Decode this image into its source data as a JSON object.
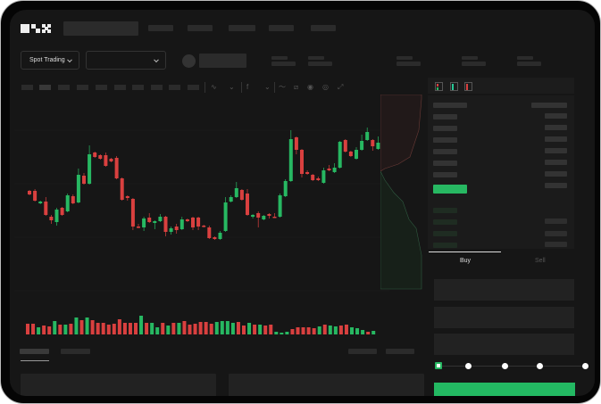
{
  "brand": {
    "logo_text": "OKX"
  },
  "toolbar": {
    "market_type": "Spot Trading"
  },
  "trade_panel": {
    "tabs": [
      {
        "label": "Buy",
        "active": true
      },
      {
        "label": "Sell",
        "active": false
      }
    ],
    "leverage_steps": 5,
    "selected_step": 0
  },
  "colors": {
    "up": "#27b862",
    "down": "#d9403f",
    "background": "#161616"
  },
  "icons": [
    "chevron-down-icon",
    "indicator-icon",
    "drawing-line-icon",
    "ruler-icon",
    "camera-icon",
    "settings-icon",
    "fullscreen-icon",
    "orderbook-both-icon",
    "orderbook-bids-icon",
    "orderbook-asks-icon"
  ],
  "chart_data": {
    "type": "candlestick",
    "candles": [
      [
        97,
        98,
        92,
        93
      ],
      [
        97,
        99,
        85,
        86
      ],
      [
        83,
        86,
        82,
        85
      ],
      [
        85,
        90,
        69,
        70
      ],
      [
        68,
        70,
        60,
        64
      ],
      [
        62,
        78,
        58,
        76
      ],
      [
        78,
        79,
        69,
        70
      ],
      [
        74,
        94,
        73,
        92
      ],
      [
        91,
        93,
        82,
        83
      ],
      [
        84,
        122,
        83,
        115
      ],
      [
        114,
        117,
        104,
        105
      ],
      [
        105,
        148,
        104,
        138
      ],
      [
        140,
        141,
        134,
        135
      ],
      [
        137,
        138,
        132,
        133
      ],
      [
        137,
        140,
        124,
        125
      ],
      [
        133,
        134,
        129,
        130
      ],
      [
        134,
        136,
        110,
        111
      ],
      [
        111,
        112,
        86,
        87
      ],
      [
        91,
        92,
        86,
        89
      ],
      [
        88,
        89,
        53,
        57
      ],
      [
        57,
        60,
        55,
        56
      ],
      [
        56,
        68,
        52,
        66
      ],
      [
        67,
        72,
        61,
        62
      ],
      [
        61,
        64,
        54,
        63
      ],
      [
        63,
        71,
        62,
        68
      ],
      [
        68,
        69,
        46,
        51
      ],
      [
        51,
        57,
        48,
        55
      ],
      [
        57,
        60,
        49,
        53
      ],
      [
        54,
        68,
        53,
        65
      ],
      [
        65,
        66,
        62,
        63
      ],
      [
        67,
        68,
        53,
        56
      ],
      [
        67,
        68,
        53,
        57
      ],
      [
        58,
        59,
        56,
        57
      ],
      [
        56,
        58,
        43,
        44
      ],
      [
        45,
        46,
        42,
        43
      ],
      [
        43,
        52,
        42,
        50
      ],
      [
        52,
        90,
        51,
        84
      ],
      [
        85,
        92,
        84,
        90
      ],
      [
        90,
        107,
        89,
        100
      ],
      [
        98,
        99,
        86,
        87
      ],
      [
        94,
        99,
        69,
        70
      ],
      [
        68,
        71,
        66,
        70
      ],
      [
        72,
        74,
        56,
        67
      ],
      [
        65,
        70,
        64,
        69
      ],
      [
        71,
        72,
        66,
        69
      ],
      [
        68,
        72,
        67,
        67
      ],
      [
        68,
        94,
        67,
        92
      ],
      [
        91,
        110,
        90,
        108
      ],
      [
        108,
        165,
        107,
        155
      ],
      [
        157,
        158,
        138,
        143
      ],
      [
        143,
        144,
        112,
        116
      ],
      [
        118,
        120,
        115,
        116
      ],
      [
        115,
        116,
        108,
        109
      ],
      [
        111,
        113,
        108,
        109
      ],
      [
        106,
        123,
        105,
        120
      ],
      [
        122,
        126,
        119,
        120
      ],
      [
        118,
        128,
        117,
        123
      ],
      [
        123,
        153,
        122,
        152
      ],
      [
        154,
        155,
        140,
        141
      ],
      [
        141,
        142,
        135,
        136
      ],
      [
        133,
        146,
        132,
        143
      ],
      [
        143,
        160,
        142,
        153
      ],
      [
        154,
        168,
        153,
        163
      ],
      [
        154,
        155,
        142,
        147
      ],
      [
        144,
        158,
        143,
        151
      ]
    ],
    "volume": [
      12,
      12,
      8,
      10,
      9,
      15,
      11,
      11,
      12,
      19,
      16,
      19,
      16,
      13,
      13,
      11,
      12,
      17,
      13,
      13,
      13,
      21,
      13,
      13,
      8,
      13,
      10,
      13,
      13,
      15,
      11,
      12,
      14,
      14,
      12,
      14,
      15,
      15,
      13,
      14,
      10,
      13,
      11,
      11,
      10,
      11,
      3,
      2,
      3,
      6,
      8,
      8,
      8,
      7,
      9,
      11,
      10,
      9,
      10,
      11,
      8,
      7,
      5,
      3,
      4
    ]
  }
}
